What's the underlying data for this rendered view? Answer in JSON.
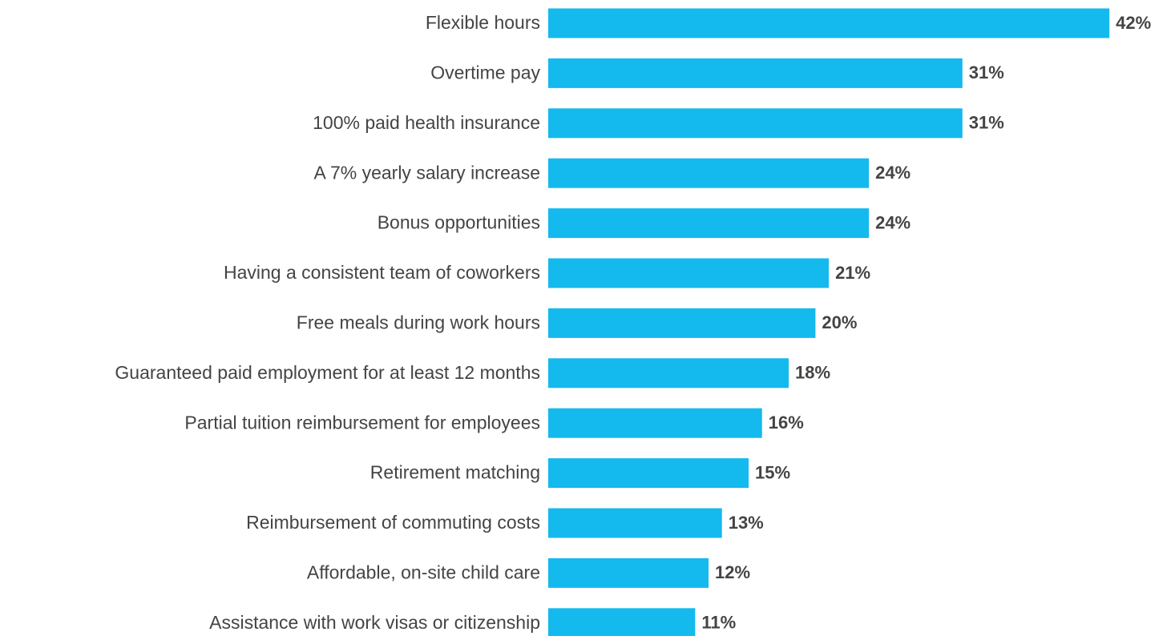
{
  "chart_data": {
    "type": "bar",
    "orientation": "horizontal",
    "color": "#14b9ee",
    "categories": [
      "Flexible hours",
      "Overtime pay",
      "100% paid health insurance",
      "A 7% yearly salary increase",
      "Bonus opportunities",
      "Having a consistent team of coworkers",
      "Free meals during work hours",
      "Guaranteed paid employment for at least 12 months",
      "Partial tuition reimbursement for employees",
      "Retirement matching",
      "Reimbursement of commuting costs",
      "Affordable, on-site child care",
      "Assistance with work visas or citizenship"
    ],
    "values": [
      42,
      31,
      31,
      24,
      24,
      21,
      20,
      18,
      16,
      15,
      13,
      12,
      11
    ],
    "value_labels": [
      "42%",
      "31%",
      "31%",
      "24%",
      "24%",
      "21%",
      "20%",
      "18%",
      "16%",
      "15%",
      "13%",
      "12%",
      "11%"
    ]
  }
}
